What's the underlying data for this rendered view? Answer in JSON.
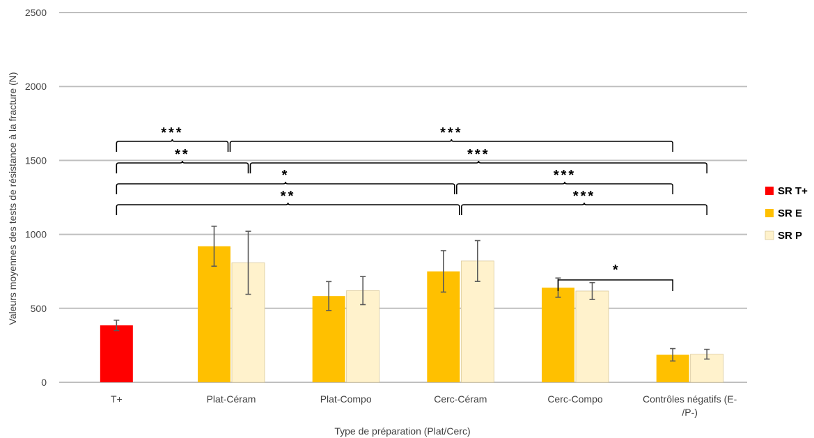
{
  "chart_data": {
    "type": "bar",
    "xlabel": "Type de préparation (Plat/Cerc)",
    "ylabel": "Valeurs moyennes des tests de résistance à la fracture (N)",
    "ylim": [
      0,
      2500
    ],
    "yticks": [
      "0",
      "500",
      "1000",
      "1500",
      "2000",
      "2500"
    ],
    "grid": true,
    "legend_position": "right",
    "categories": [
      [
        "T+"
      ],
      [
        "Plat-Céram"
      ],
      [
        "Plat-Compo"
      ],
      [
        "Cerc-Céram"
      ],
      [
        "Cerc-Compo"
      ],
      [
        "Contrôles négatifs (E-",
        "/P-)"
      ]
    ],
    "series": [
      {
        "name": "SR T+",
        "color": "#ff0000",
        "values": [
          385,
          null,
          null,
          null,
          null,
          null
        ],
        "err": [
          35,
          null,
          null,
          null,
          null,
          null
        ]
      },
      {
        "name": "SR E",
        "color": "#ffc000",
        "values": [
          null,
          920,
          583,
          750,
          640,
          186
        ],
        "err": [
          null,
          135,
          98,
          140,
          65,
          42
        ]
      },
      {
        "name": "SR P",
        "color": "#fff2cc",
        "values": [
          null,
          808,
          620,
          820,
          617,
          190
        ],
        "err": [
          null,
          213,
          95,
          138,
          57,
          33
        ]
      }
    ],
    "significance": [
      {
        "label": "***",
        "from": "T+",
        "to": "Plat-Céram"
      },
      {
        "label": "***",
        "from": "Plat-Céram",
        "to": "Contrôles négatifs (E-/P-) SR E"
      },
      {
        "label": "**",
        "from": "T+",
        "to": "Plat-Céram SR P"
      },
      {
        "label": "***",
        "from": "Plat-Céram SR P",
        "to": "Contrôles négatifs (E-/P-) SR P"
      },
      {
        "label": "*",
        "from": "T+",
        "to": "Cerc-Céram"
      },
      {
        "label": "***",
        "from": "Cerc-Céram",
        "to": "Contrôles négatifs (E-/P-) SR E"
      },
      {
        "label": "**",
        "from": "T+",
        "to": "Cerc-Céram SR P"
      },
      {
        "label": "***",
        "from": "Cerc-Céram SR P",
        "to": "Contrôles négatifs (E-/P-) SR P"
      },
      {
        "label": "*",
        "from": "Cerc-Compo SR E",
        "to": "Contrôles négatifs (E-/P-) SR E"
      }
    ]
  }
}
